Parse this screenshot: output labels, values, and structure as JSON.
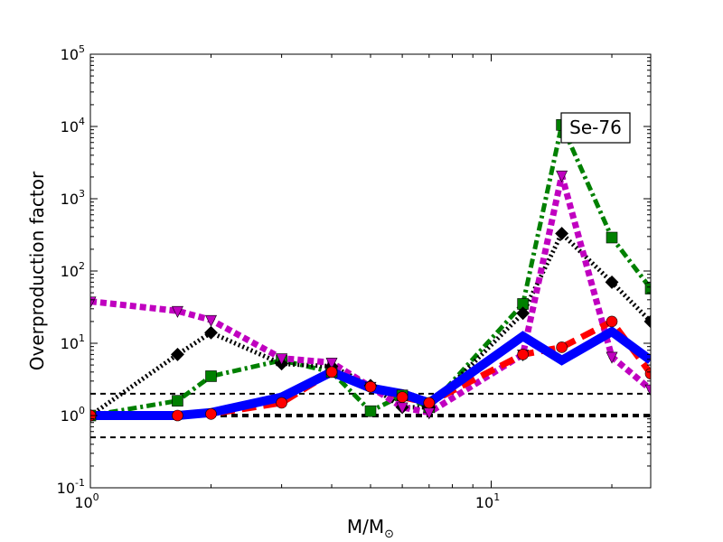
{
  "chart_data": {
    "type": "line",
    "xscale": "log",
    "yscale": "log",
    "xlim": [
      1,
      25
    ],
    "ylim": [
      0.1,
      100000
    ],
    "xlabel": "M/M",
    "xlabel_sub": "⊙",
    "ylabel": "Overproduction factor",
    "annotation": "Se-76",
    "grid": false,
    "x_ticks": [
      {
        "value": 1,
        "base": "10",
        "exp": "0"
      },
      {
        "value": 10,
        "base": "10",
        "exp": "1"
      }
    ],
    "y_ticks": [
      {
        "value": 0.1,
        "base": "10",
        "exp": "-1"
      },
      {
        "value": 1,
        "base": "10",
        "exp": "0"
      },
      {
        "value": 10,
        "base": "10",
        "exp": "1"
      },
      {
        "value": 100,
        "base": "10",
        "exp": "2"
      },
      {
        "value": 1000,
        "base": "10",
        "exp": "3"
      },
      {
        "value": 10000,
        "base": "10",
        "exp": "4"
      },
      {
        "value": 100000,
        "base": "10",
        "exp": "5"
      }
    ],
    "reference_lines": [
      {
        "y": 2,
        "color": "#000000",
        "dash": "6,5",
        "width": 2
      },
      {
        "y": 1,
        "color": "#000000",
        "dash": "7,5",
        "width": 4
      },
      {
        "y": 0.5,
        "color": "#000000",
        "dash": "6,5",
        "width": 2
      }
    ],
    "series": [
      {
        "color": "#008000",
        "marker": "square",
        "style": "dashdot",
        "width": 5,
        "x": [
          1,
          1.65,
          2,
          3,
          4,
          5,
          6,
          7,
          12,
          15,
          20,
          25
        ],
        "y": [
          1.0,
          1.6,
          3.5,
          5.8,
          4.0,
          1.15,
          1.9,
          1.3,
          35,
          10500,
          290,
          57
        ]
      },
      {
        "color": "#000000",
        "marker": "diamond",
        "style": "dotted",
        "width": 5,
        "x": [
          1,
          1.65,
          2,
          3,
          4,
          5,
          6,
          7,
          12,
          15,
          20,
          25
        ],
        "y": [
          1.0,
          7.0,
          14,
          5.2,
          4.8,
          2.6,
          1.3,
          1.3,
          26,
          330,
          70,
          20
        ]
      },
      {
        "color": "#c000c0",
        "marker": "triangle-down",
        "style": "dotted",
        "width": 7,
        "x": [
          1,
          1.65,
          2,
          3,
          4,
          5,
          6,
          7,
          12,
          15,
          20,
          25
        ],
        "y": [
          38,
          28,
          21,
          6.2,
          5.4,
          2.5,
          1.3,
          1.1,
          7.0,
          2100,
          6.5,
          2.3
        ]
      },
      {
        "color": "#ff0000",
        "marker": "circle",
        "style": "dashed",
        "width": 7,
        "x": [
          1,
          1.65,
          2,
          3,
          4,
          5,
          6,
          7,
          12,
          15,
          20,
          25
        ],
        "y": [
          1.0,
          1.0,
          1.05,
          1.5,
          4.0,
          2.5,
          1.8,
          1.5,
          7.0,
          8.8,
          20,
          3.8
        ]
      },
      {
        "color": "#0000ff",
        "marker": "none",
        "style": "solid",
        "width": 10,
        "x": [
          1,
          1.65,
          2,
          3,
          4,
          5,
          6,
          7,
          12,
          15,
          20,
          25
        ],
        "y": [
          1.0,
          1.0,
          1.1,
          1.8,
          4.0,
          2.4,
          2.0,
          1.5,
          12.5,
          5.8,
          14.5,
          5.8
        ]
      }
    ]
  }
}
